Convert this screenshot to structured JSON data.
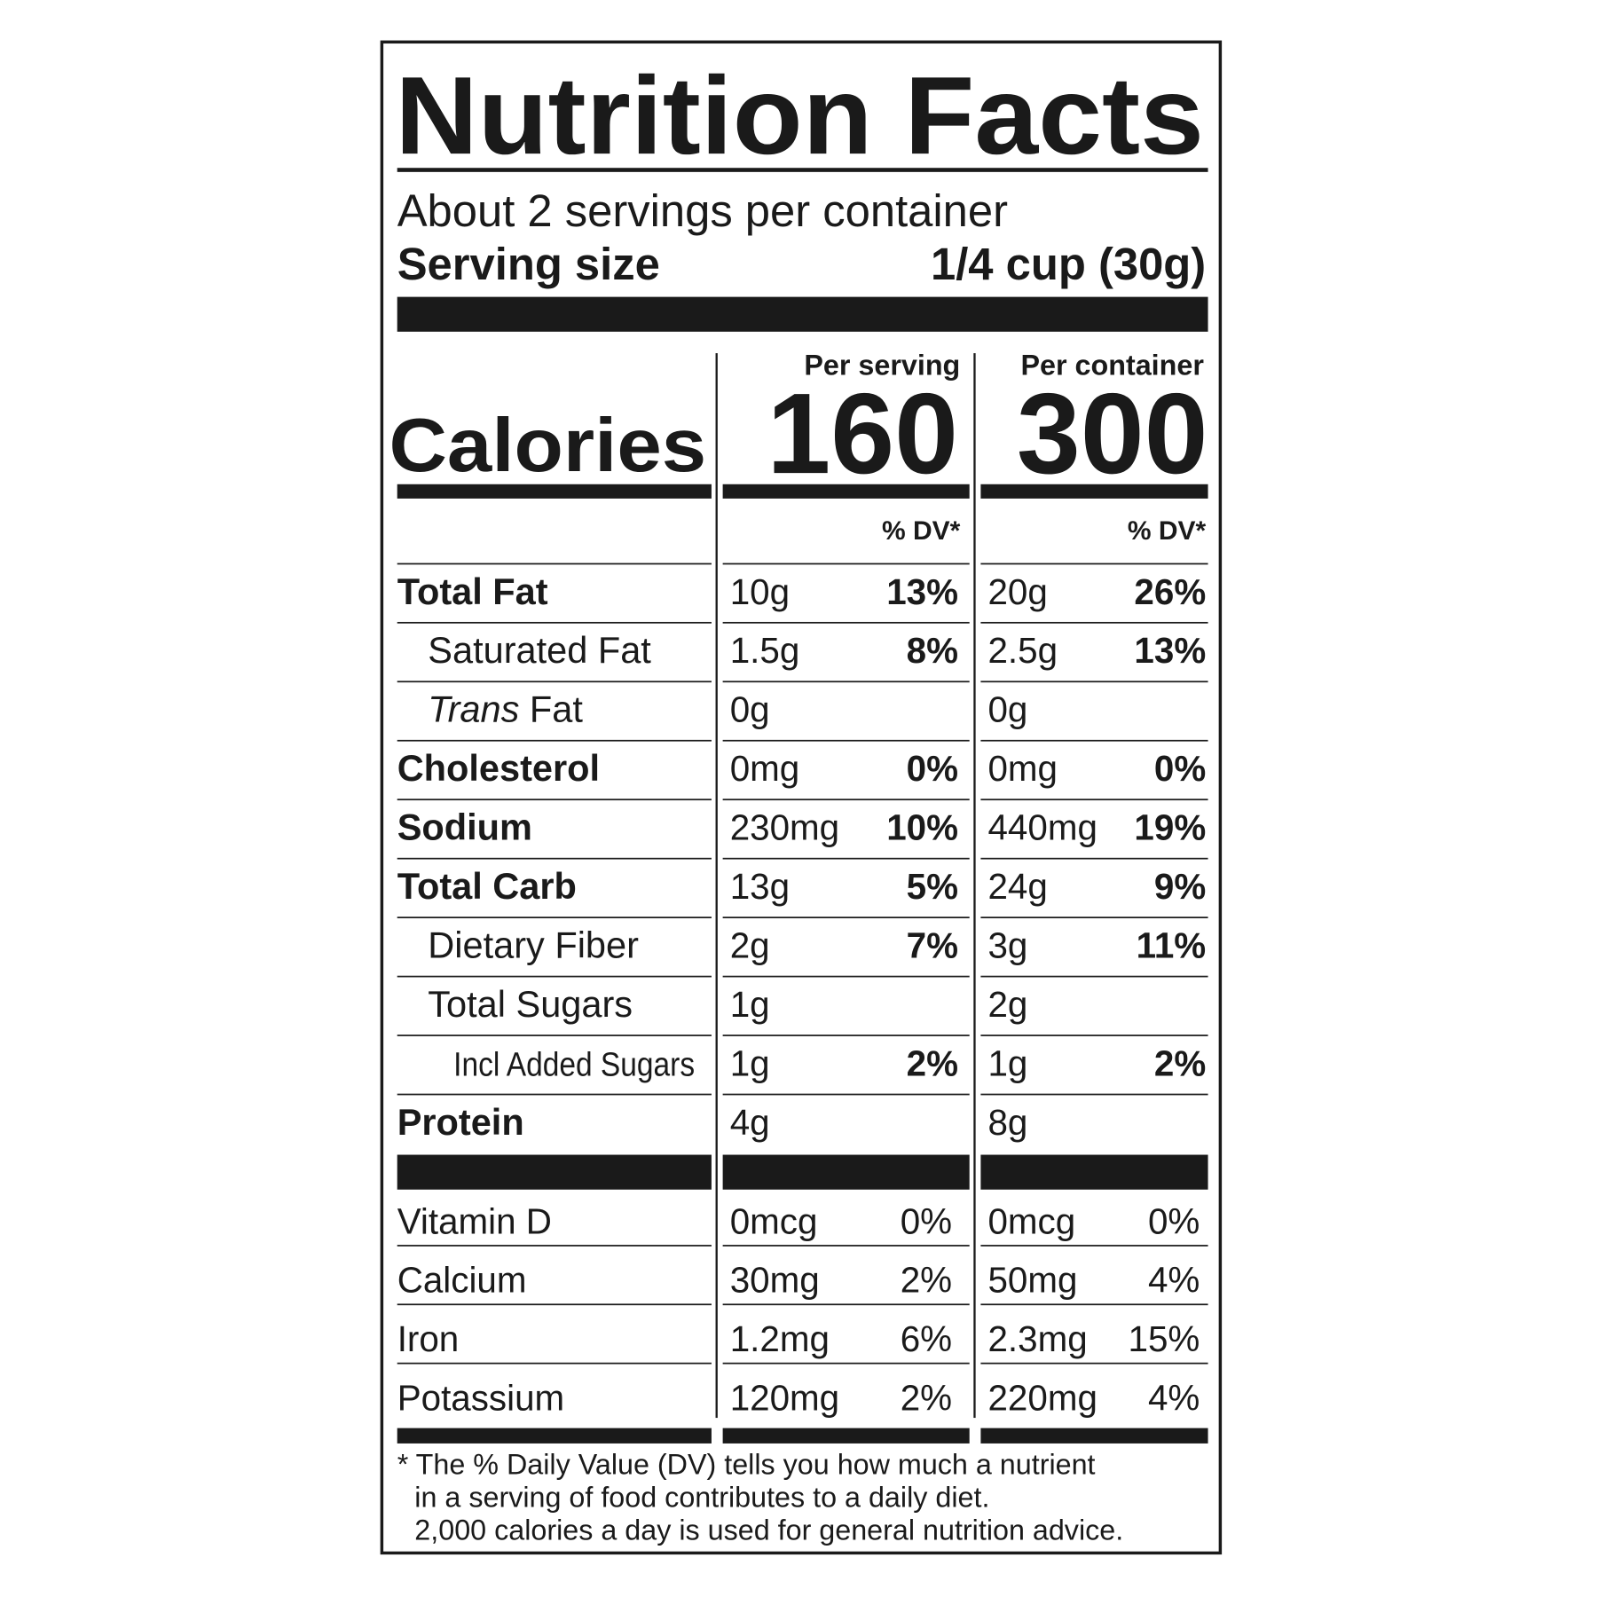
{
  "title": "Nutrition Facts",
  "servings": "About 2 servings per container",
  "serving_size": {
    "label": "Serving size",
    "value": "1/4 cup (30g)"
  },
  "columns": [
    "Per serving",
    "Per container"
  ],
  "calories": {
    "label": "Calories",
    "values": [
      "160",
      "300"
    ]
  },
  "dv_header": [
    "% DV*",
    "% DV*"
  ],
  "nutrients": [
    {
      "name": "Total Fat",
      "amounts": [
        {
          "amount": "10g",
          "dv": "13%"
        },
        {
          "amount": "20g",
          "dv": "26%"
        }
      ]
    },
    {
      "name": "Saturated Fat",
      "amounts": [
        {
          "amount": "1.5g",
          "dv": "8%"
        },
        {
          "amount": "2.5g",
          "dv": "13%"
        }
      ]
    },
    {
      "name": "Trans Fat",
      "amounts": [
        {
          "amount": "0g"
        },
        {
          "amount": "0g"
        }
      ]
    },
    {
      "name": "Cholesterol",
      "amounts": [
        {
          "amount": "0mg",
          "dv": "0%"
        },
        {
          "amount": "0mg",
          "dv": "0%"
        }
      ]
    },
    {
      "name": "Sodium",
      "amounts": [
        {
          "amount": "230mg",
          "dv": "10%"
        },
        {
          "amount": "440mg",
          "dv": "19%"
        }
      ]
    },
    {
      "name": "Total Carb",
      "amounts": [
        {
          "amount": "13g",
          "dv": "5%"
        },
        {
          "amount": "24g",
          "dv": "9%"
        }
      ]
    },
    {
      "name": "Dietary Fiber",
      "amounts": [
        {
          "amount": "2g",
          "dv": "7%"
        },
        {
          "amount": "3g",
          "dv": "11%"
        }
      ]
    },
    {
      "name": "Total Sugars",
      "amounts": [
        {
          "amount": "1g"
        },
        {
          "amount": "2g"
        }
      ]
    },
    {
      "name": "Incl Added Sugars",
      "amounts": [
        {
          "amount": "1g",
          "dv": "2%"
        },
        {
          "amount": "1g",
          "dv": "2%"
        }
      ]
    },
    {
      "name": "Protein",
      "amounts": [
        {
          "amount": "4g"
        },
        {
          "amount": "8g"
        }
      ]
    }
  ],
  "vitamins": [
    {
      "name": "Vitamin D",
      "amounts": [
        {
          "amount": "0mcg",
          "dv": "0%"
        },
        {
          "amount": "0mcg",
          "dv": "0%"
        }
      ]
    },
    {
      "name": "Calcium",
      "amounts": [
        {
          "amount": "30mg",
          "dv": "2%"
        },
        {
          "amount": "50mg",
          "dv": "4%"
        }
      ]
    },
    {
      "name": "Iron",
      "amounts": [
        {
          "amount": "1.2mg",
          "dv": "6%"
        },
        {
          "amount": "2.3mg",
          "dv": "15%"
        }
      ]
    },
    {
      "name": "Potassium",
      "amounts": [
        {
          "amount": "120mg",
          "dv": "2%"
        },
        {
          "amount": "220mg",
          "dv": "4%"
        }
      ]
    }
  ],
  "footnote": [
    "* The % Daily Value (DV) tells you how much a nutrient",
    "in a serving of food contributes to a daily diet.",
    "2,000 calories a day is used for general nutrition advice."
  ]
}
